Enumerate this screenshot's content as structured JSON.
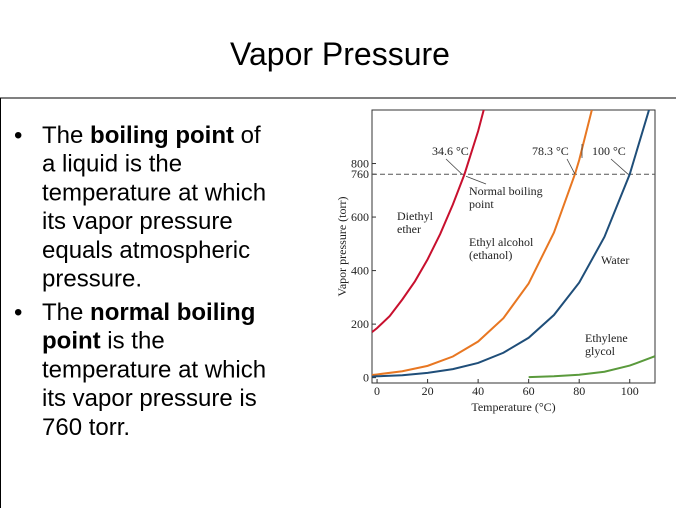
{
  "slide": {
    "title": "Vapor Pressure",
    "bullets": [
      [
        [
          {
            "text": "The "
          },
          {
            "text": "boiling point",
            "bold": true
          },
          {
            "text": " of"
          }
        ],
        [
          {
            "text": "a liquid is the"
          }
        ],
        [
          {
            "text": "temperature at which"
          }
        ],
        [
          {
            "text": "its vapor pressure"
          }
        ],
        [
          {
            "text": "equals atmospheric"
          }
        ],
        [
          {
            "text": "pressure."
          }
        ]
      ],
      [
        [
          {
            "text": "The "
          },
          {
            "text": "normal boiling",
            "bold": true
          }
        ],
        [
          {
            "text": "point",
            "bold": true
          },
          {
            "text": " is the"
          }
        ],
        [
          {
            "text": "temperature at which"
          }
        ],
        [
          {
            "text": "its vapor pressure is"
          }
        ],
        [
          {
            "text": "760 torr."
          }
        ]
      ]
    ]
  },
  "chart_data": {
    "type": "line",
    "xlabel": "Temperature (°C)",
    "ylabel": "Vapor pressure (torr)",
    "xlim": [
      -2,
      110
    ],
    "ylim": [
      -20,
      1000
    ],
    "xticks": [
      0,
      20,
      40,
      60,
      80,
      100
    ],
    "yticks": [
      0,
      200,
      400,
      600,
      760,
      800
    ],
    "reference_line": 760,
    "series": [
      {
        "name": "Diethyl ether",
        "color": "#c8102e",
        "x": [
          -2,
          0,
          5,
          10,
          15,
          20,
          25,
          30,
          34.6,
          40,
          45
        ],
        "values": [
          170,
          185,
          230,
          292,
          360,
          442,
          537,
          647,
          760,
          921,
          1100
        ]
      },
      {
        "name": "Ethyl alcohol (ethanol)",
        "color": "#e87722",
        "x": [
          -2,
          0,
          10,
          20,
          30,
          40,
          50,
          60,
          70,
          78.3,
          80,
          85
        ],
        "values": [
          10,
          12,
          24,
          44,
          79,
          135,
          222,
          352,
          542,
          760,
          813,
          1000
        ]
      },
      {
        "name": "Water",
        "color": "#1f4e79",
        "x": [
          -2,
          0,
          10,
          20,
          30,
          40,
          50,
          60,
          70,
          80,
          90,
          100,
          110
        ],
        "values": [
          4,
          5,
          9,
          18,
          32,
          55,
          93,
          149,
          234,
          355,
          526,
          760,
          1075
        ]
      },
      {
        "name": "Ethylene glycol",
        "color": "#5a9a3c",
        "x": [
          60,
          70,
          80,
          90,
          100,
          110
        ],
        "values": [
          2,
          5,
          11,
          22,
          45,
          80
        ]
      }
    ],
    "annotations": [
      {
        "lines": [
          "34.6 °C"
        ]
      },
      {
        "lines": [
          "78.3 °C"
        ]
      },
      {
        "lines": [
          "100 °C"
        ]
      },
      {
        "lines": [
          "Normal boiling",
          "point"
        ]
      },
      {
        "lines": [
          "Diethyl",
          "ether"
        ]
      },
      {
        "lines": [
          "Ethyl alcohol",
          "(ethanol)"
        ]
      },
      {
        "lines": [
          "Water"
        ]
      },
      {
        "lines": [
          "Ethylene",
          "glycol"
        ]
      }
    ]
  }
}
